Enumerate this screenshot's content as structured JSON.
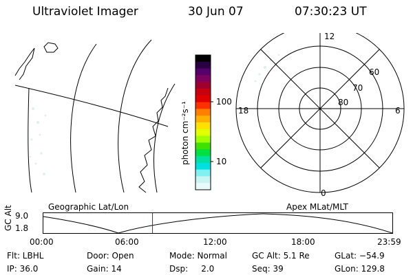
{
  "header": {
    "title": "Ultraviolet Imager",
    "date": "30 Jun 07",
    "time": "07:30:23 UT"
  },
  "colorbar": {
    "unit_label": "photon cm⁻²s⁻¹",
    "ticks": [
      "100",
      "10"
    ],
    "colors": [
      "#000000",
      "#2a0040",
      "#55006a",
      "#800060",
      "#a00030",
      "#c80010",
      "#e00000",
      "#ff3000",
      "#ff8000",
      "#ffb000",
      "#ffe000",
      "#e0ff00",
      "#a0ff00",
      "#40e000",
      "#00e040",
      "#00e0a0",
      "#00e0e0",
      "#80f0f0",
      "#c8f4f4",
      "#e8fafa"
    ]
  },
  "polar": {
    "mlt_labels": {
      "top": "12",
      "left": "18",
      "right": "6",
      "bottom": "0"
    },
    "lat_labels": [
      "60",
      "70",
      "80"
    ]
  },
  "timeline": {
    "left_label": "Geographic Lat/Lon",
    "right_label": "Apex MLat/MLT",
    "axis_title": "GC Alt",
    "y_ticks": [
      "9.0",
      "1.8"
    ],
    "x_ticks": [
      "00:00",
      "06:00",
      "12:00",
      "18:00",
      "23:59"
    ],
    "marker_time": "07:30",
    "marker_color": "#cc0000"
  },
  "status": {
    "flt": "Flt: LBHL",
    "ip": "IP: 36.0",
    "door": "Door: Open",
    "gain": "Gain: 14",
    "mode": "Mode: Normal",
    "dsp": "Dsp:     2.0",
    "gc_alt": "GC Alt: 5.1 Re",
    "seq": "Seq: 39",
    "glat": "GLat: −54.9",
    "glon": "GLon: 129.8"
  }
}
